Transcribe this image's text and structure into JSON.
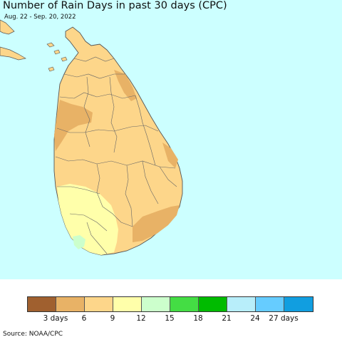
{
  "title": "Number of Rain Days in past 30 days (CPC)",
  "subtitle": "Aug. 22 - Sep. 20, 2022",
  "source": "Source: NOAA/CPC",
  "map": {
    "ocean_color": "#ccffff",
    "land_color": "#fdd68a",
    "border_color": "#555555"
  },
  "legend": {
    "colors": [
      "#a0602f",
      "#e8b266",
      "#fdd68a",
      "#ffffaa",
      "#ccffcc",
      "#44dd44",
      "#00bb00",
      "#b8eefa",
      "#66ccff",
      "#119ee0"
    ],
    "labels": [
      "3 days",
      "6",
      "9",
      "12",
      "15",
      "18",
      "21",
      "24",
      "27 days"
    ]
  }
}
